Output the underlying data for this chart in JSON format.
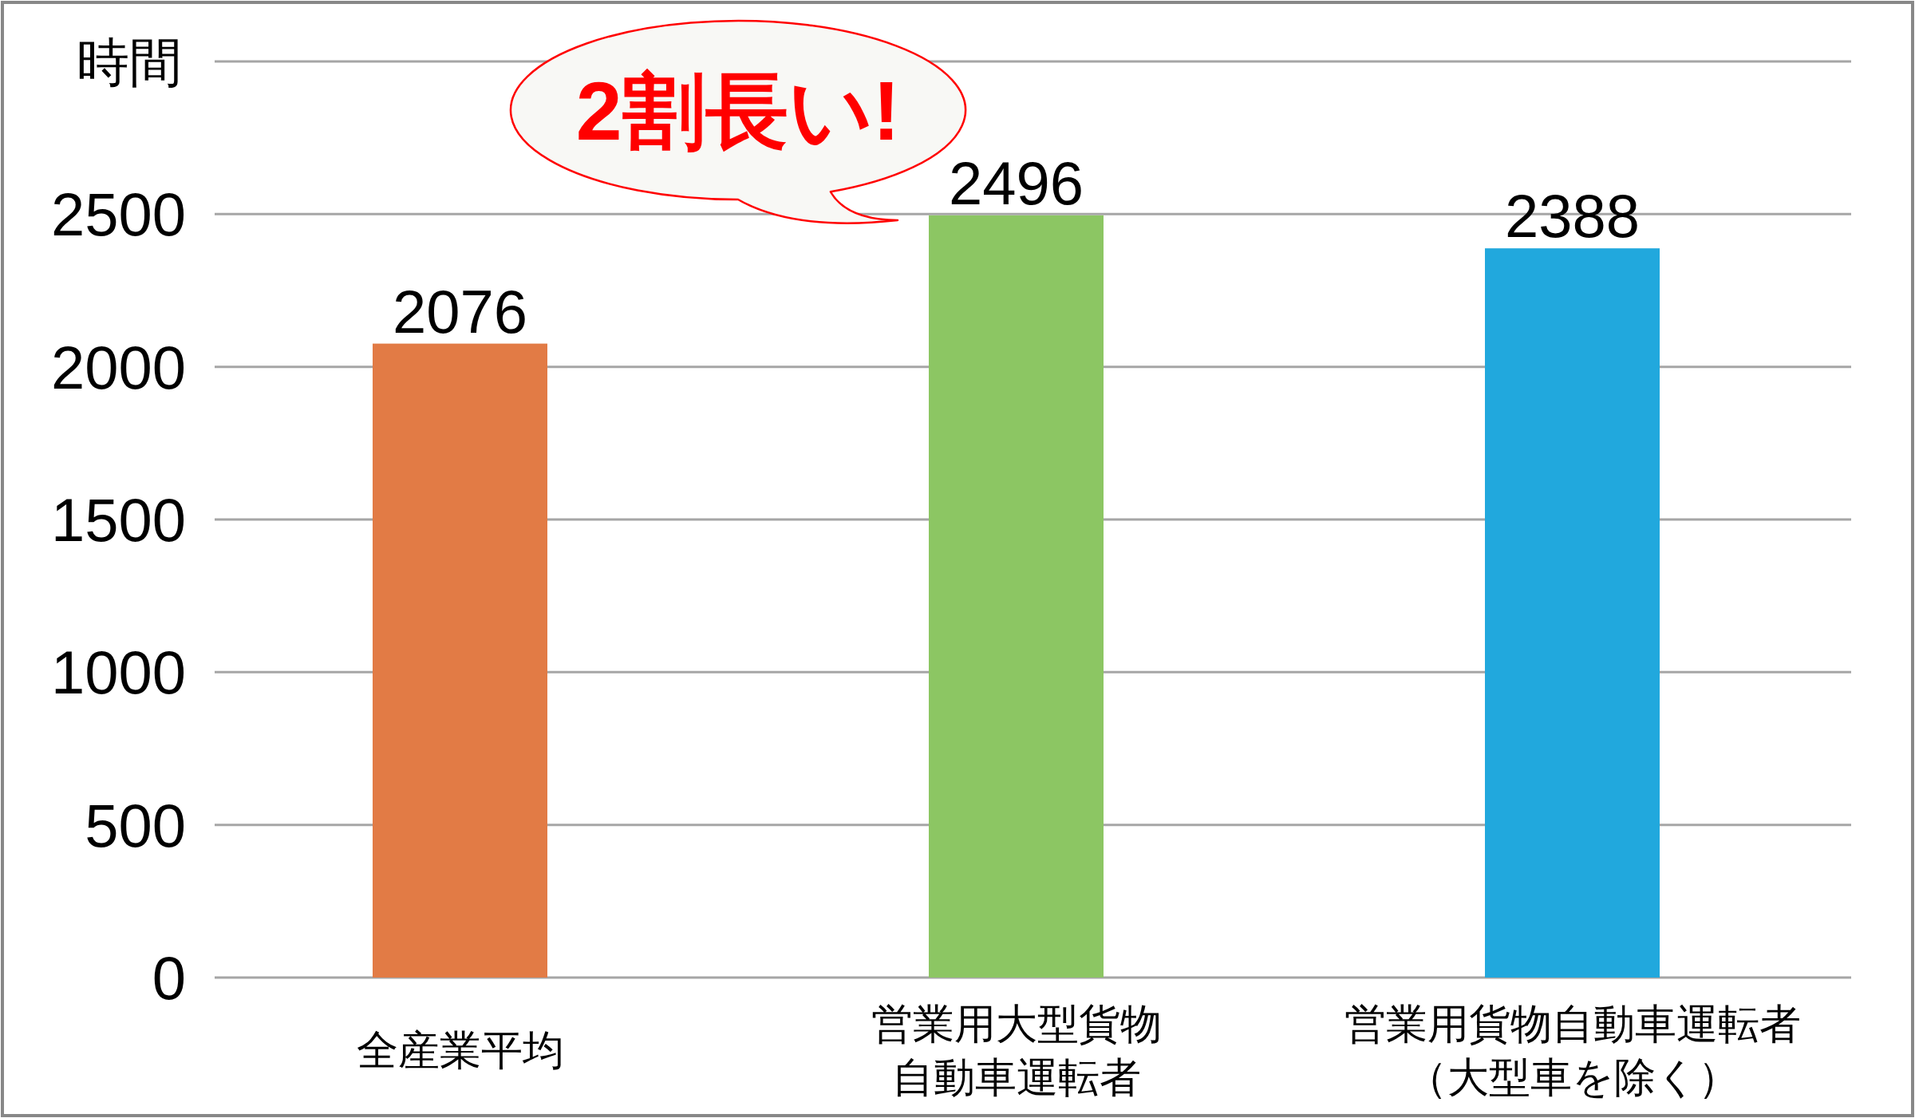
{
  "chart_data": {
    "type": "bar",
    "ylabel": "時間",
    "categories": [
      "全産業平均",
      "営業用大型貨物自動車運転者",
      "営業用貨物自動車運転者（大型車を除く）"
    ],
    "values": [
      2076,
      2496,
      2388
    ],
    "colors": [
      "#e27b45",
      "#8cc663",
      "#21a8dd"
    ],
    "ylim": [
      0,
      3000
    ],
    "yticks": [
      0,
      500,
      1000,
      1500,
      2000,
      2500,
      {
        "value": 3000,
        "label": null
      }
    ],
    "grid": "y",
    "data_labels": true,
    "annotations": [
      "2割長い!"
    ]
  }
}
